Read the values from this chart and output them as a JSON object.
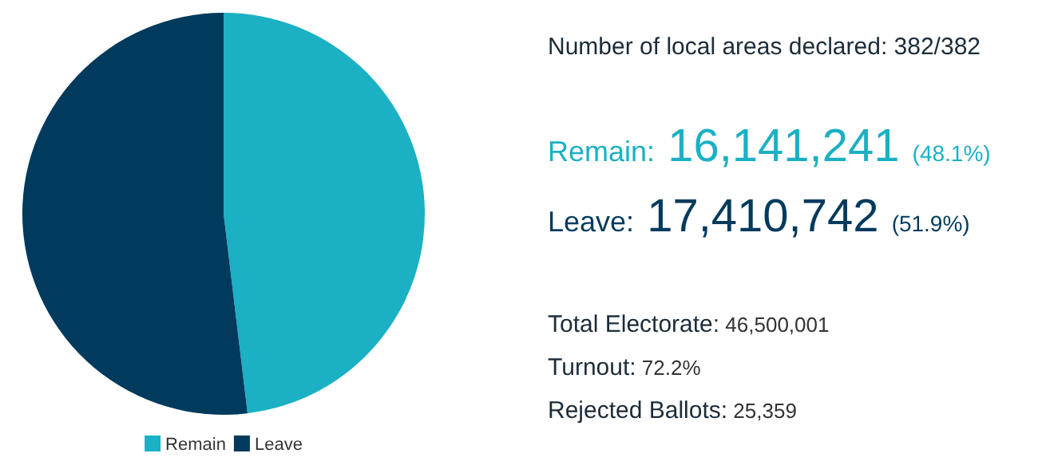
{
  "chart_data": {
    "type": "pie",
    "categories": [
      "Remain",
      "Leave"
    ],
    "values": [
      48.1,
      51.9
    ],
    "colors": [
      "#1bb0c4",
      "#003a5d"
    ],
    "legend": "bottom",
    "annotations": [
      "Number of local areas declared: 382/382",
      "Remain: 16,141,241 (48.1%)",
      "Leave: 17,410,742 (51.9%)",
      "Total Electorate: 46,500,001",
      "Turnout: 72.2%",
      "Rejected Ballots: 25,359"
    ]
  }
}
